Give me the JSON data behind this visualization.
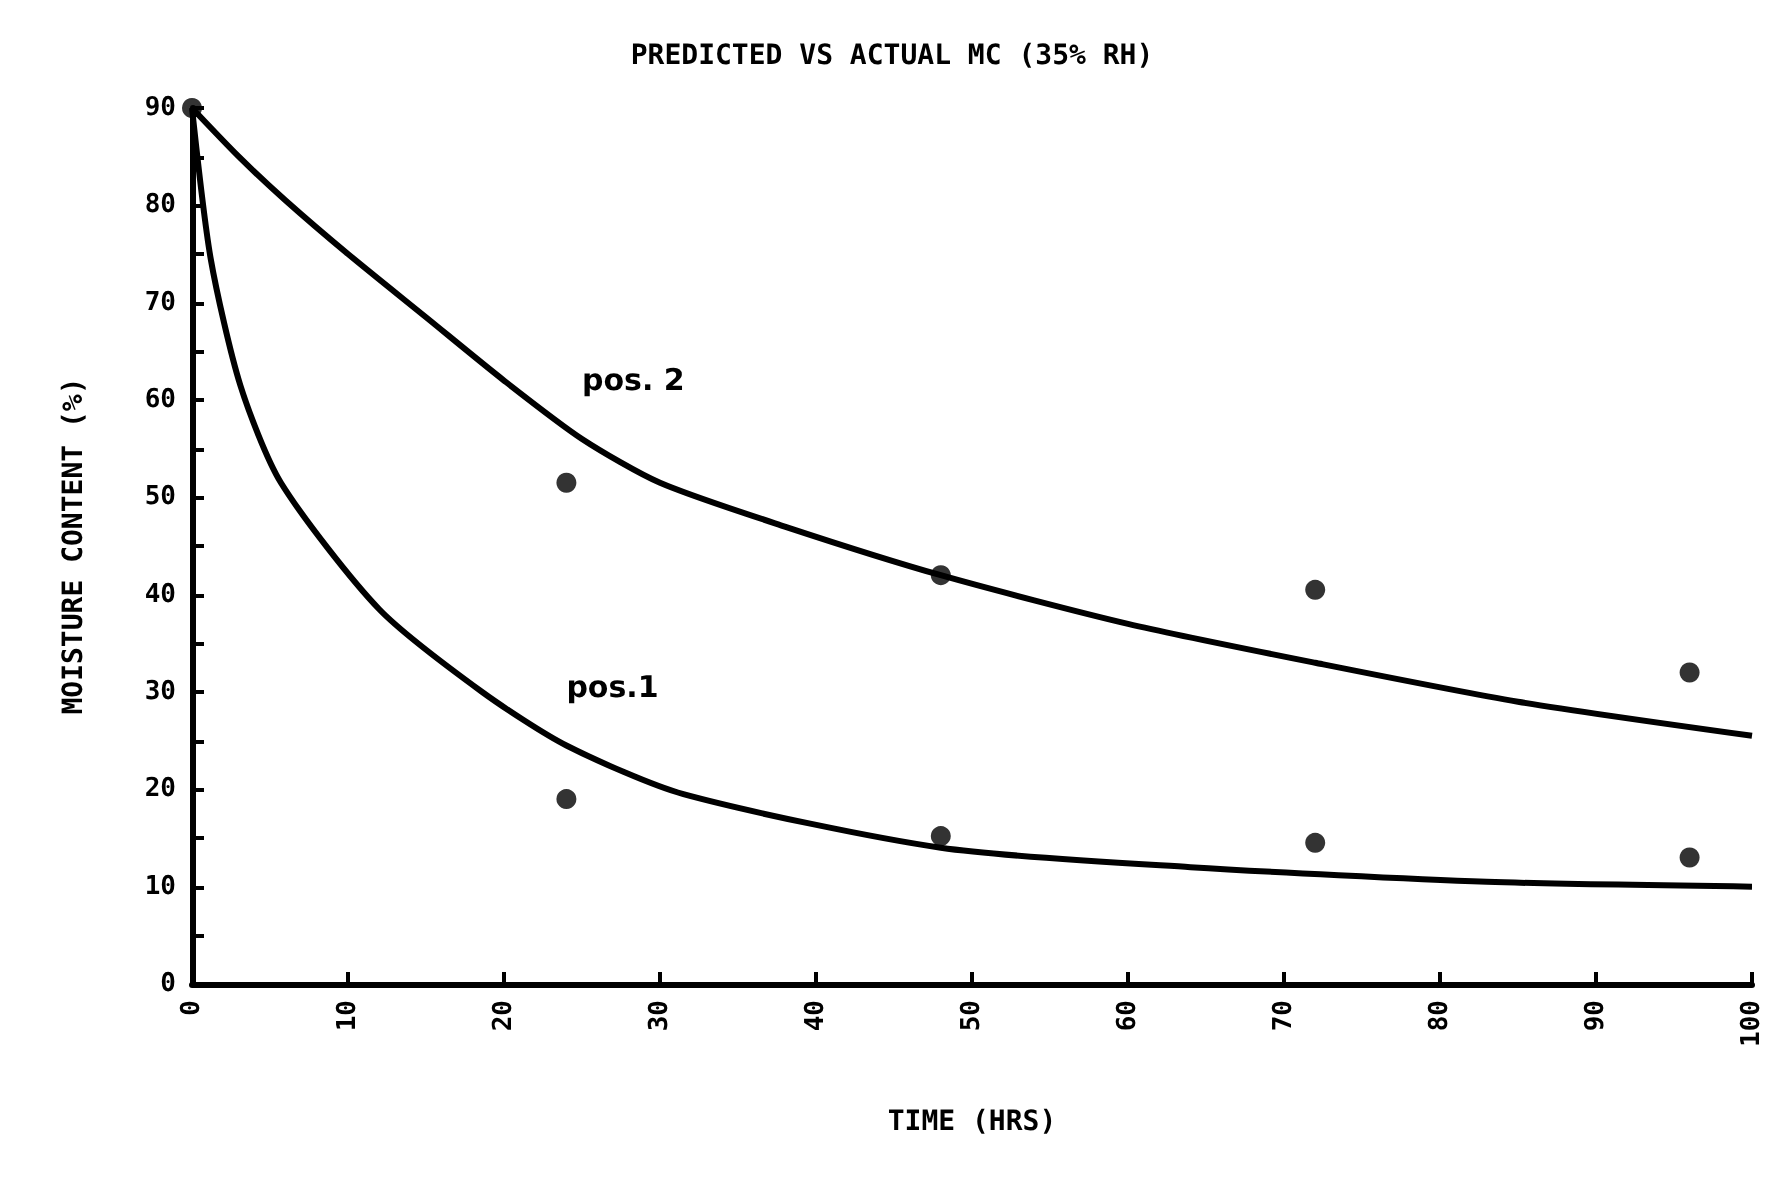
{
  "chart_data": {
    "type": "line",
    "title": "PREDICTED VS ACTUAL MC (35% RH)",
    "xlabel": "TIME (HRS)",
    "ylabel": "MOISTURE CONTENT (%)",
    "xlim": [
      0,
      100
    ],
    "xticks": [
      0,
      10,
      20,
      30,
      40,
      50,
      60,
      70,
      80,
      90,
      100
    ],
    "ylim": [
      0,
      90
    ],
    "yticks": [
      0,
      {
        "value": 5,
        "label": null
      },
      10,
      {
        "value": 15,
        "label": null
      },
      20,
      {
        "value": 25,
        "label": null
      },
      30,
      {
        "value": 35,
        "label": null
      },
      40,
      {
        "value": 45,
        "label": null
      },
      50,
      {
        "value": 55,
        "label": null
      },
      60,
      {
        "value": 65,
        "label": null
      },
      70,
      {
        "value": 75,
        "label": null
      },
      80,
      {
        "value": 85,
        "label": null
      },
      90
    ],
    "grid": false,
    "series": [
      {
        "name": "pos. 2",
        "color": "#000000",
        "marker": "none",
        "x": [
          0,
          3,
          6,
          10,
          15,
          20,
          25,
          30,
          38,
          48,
          60,
          72,
          85,
          100
        ],
        "values": [
          90,
          85,
          80.5,
          75,
          68.5,
          62,
          56,
          51.5,
          47,
          42,
          37,
          33,
          29,
          25.5
        ]
      },
      {
        "name": "pos.1",
        "color": "#000000",
        "marker": "none",
        "x": [
          0,
          1.2,
          3.1,
          5.7,
          12,
          18.6,
          24,
          31.5,
          48,
          64,
          83,
          100
        ],
        "values": [
          90,
          74.5,
          61.5,
          51.5,
          38.5,
          30,
          24.5,
          19.5,
          14,
          12,
          10.5,
          10
        ]
      },
      {
        "type": "scatter",
        "color": "#000000",
        "marker": "circle",
        "x": [
          0,
          24,
          48,
          72,
          96
        ],
        "values": [
          90,
          51.5,
          42,
          40.5,
          32
        ]
      },
      {
        "type": "scatter",
        "color": "#000000",
        "marker": "circle",
        "x": [
          24,
          48,
          72,
          96
        ],
        "values": [
          19,
          15.2,
          14.5,
          13
        ]
      }
    ]
  }
}
